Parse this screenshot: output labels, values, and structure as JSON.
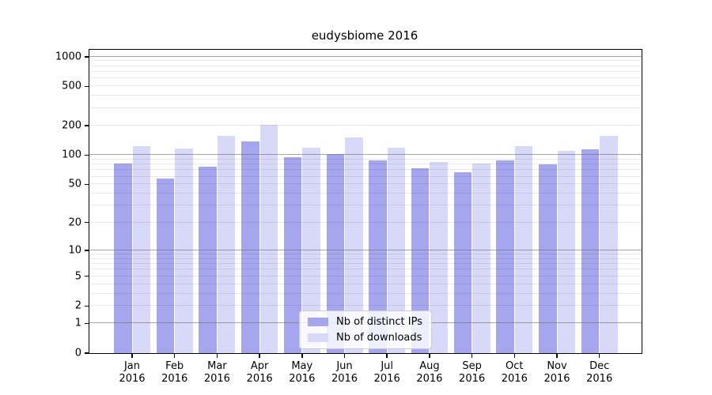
{
  "chart_data": {
    "type": "bar",
    "title": "eudysbiome 2016",
    "scale": "log1p",
    "categories": [
      "Jan 2016",
      "Feb 2016",
      "Mar 2016",
      "Apr 2016",
      "May 2016",
      "Jun 2016",
      "Jul 2016",
      "Aug 2016",
      "Sep 2016",
      "Oct 2016",
      "Nov 2016",
      "Dec 2016"
    ],
    "category_months": [
      "Jan",
      "Feb",
      "Mar",
      "Apr",
      "May",
      "Jun",
      "Jul",
      "Aug",
      "Sep",
      "Oct",
      "Nov",
      "Dec"
    ],
    "category_year": "2016",
    "series": [
      {
        "name": "Nb of distinct IPs",
        "color": "#a6a6ee",
        "values": [
          82,
          58,
          76,
          138,
          95,
          102,
          89,
          74,
          67,
          89,
          81,
          115
        ]
      },
      {
        "name": "Nb of downloads",
        "color": "#d8d8f8",
        "values": [
          124,
          117,
          158,
          205,
          118,
          152,
          118,
          85,
          82,
          124,
          110,
          157
        ]
      }
    ],
    "y_ticks": [
      0,
      1,
      2,
      5,
      10,
      20,
      50,
      100,
      200,
      500,
      1000
    ],
    "y_major_gridlines": [
      1,
      10,
      100,
      1000
    ],
    "ylim": [
      0,
      1175
    ],
    "xlabel": "",
    "ylabel": "",
    "grid": true,
    "legend_position": "bottom-center"
  },
  "colors": {
    "bar_ips": "#a6a6ee",
    "bar_downloads": "#d8d8f8",
    "grid_major": "#6e6e6e",
    "grid_minor": "#e8e8e8",
    "frame": "#000000",
    "background": "#ffffff"
  }
}
